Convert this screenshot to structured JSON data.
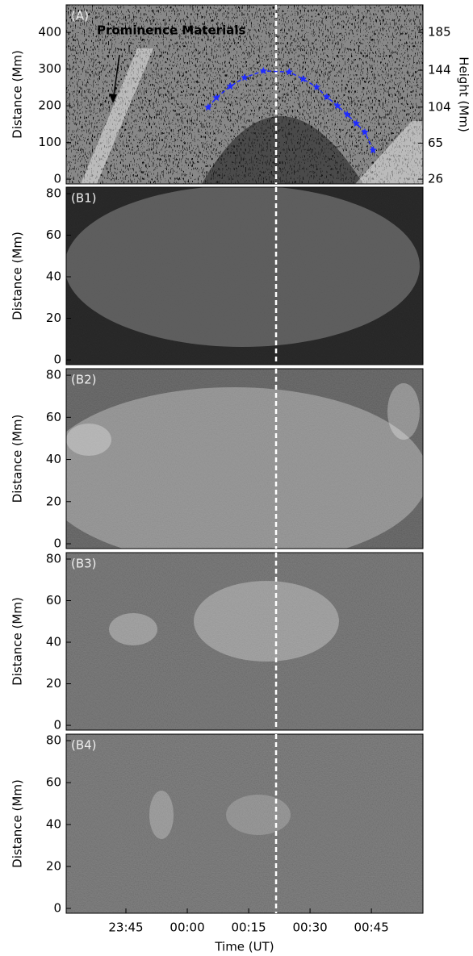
{
  "chart_data": [
    {
      "type": "scatter",
      "panel_label": "(A)",
      "ylabel": "Distance (Mm)",
      "y2label": "Height (Mm)",
      "annotation": "Prominence Materials",
      "xlim": [
        30.4,
        117.6
      ],
      "ylim": [
        -13,
        475
      ],
      "yticks": [
        0,
        100,
        200,
        300,
        400
      ],
      "y2lim": [
        20.8,
        214.8
      ],
      "y2ticks": [
        26,
        65,
        104,
        144,
        185
      ],
      "marker_x": 81.7,
      "series": [
        {
          "color": "#1f2bff",
          "x": [
            65.1,
            67.1,
            70.5,
            74.0,
            78.6,
            84.9,
            88.3,
            91.6,
            94.1,
            96.7,
            99.1,
            101.3,
            103.4,
            105.4
          ],
          "values": [
            196,
            222,
            253,
            277,
            295,
            292,
            273,
            251,
            224,
            200,
            176,
            152,
            128,
            79
          ]
        }
      ]
    },
    {
      "type": "image",
      "panel_label": "(B1)",
      "ylabel": "Distance (Mm)",
      "xlim": [
        30.4,
        117.6
      ],
      "ylim": [
        -2.3,
        83.1
      ],
      "yticks": [
        0,
        20,
        40,
        60,
        80
      ],
      "marker_x": 81.7
    },
    {
      "type": "image",
      "panel_label": "(B2)",
      "ylabel": "Distance (Mm)",
      "xlim": [
        30.4,
        117.6
      ],
      "ylim": [
        -2.3,
        83.1
      ],
      "yticks": [
        0,
        20,
        40,
        60,
        80
      ],
      "marker_x": 81.7
    },
    {
      "type": "image",
      "panel_label": "(B3)",
      "ylabel": "Distance (Mm)",
      "xlim": [
        30.4,
        117.6
      ],
      "ylim": [
        -2.3,
        83.1
      ],
      "yticks": [
        0,
        20,
        40,
        60,
        80
      ],
      "marker_x": 81.7
    },
    {
      "type": "image",
      "panel_label": "(B4)",
      "ylabel": "Distance (Mm)",
      "xlabel": "Time (UT)",
      "xlim": [
        30.4,
        117.6
      ],
      "ylim": [
        -2.3,
        83.1
      ],
      "yticks": [
        0,
        20,
        40,
        60,
        80
      ],
      "marker_x": 81.7,
      "xticks": [
        {
          "value": 45,
          "label": "23:45"
        },
        {
          "value": 60,
          "label": "00:00"
        },
        {
          "value": 75,
          "label": "00:15"
        },
        {
          "value": 90,
          "label": "00:30"
        },
        {
          "value": 105,
          "label": "00:45"
        }
      ]
    }
  ]
}
